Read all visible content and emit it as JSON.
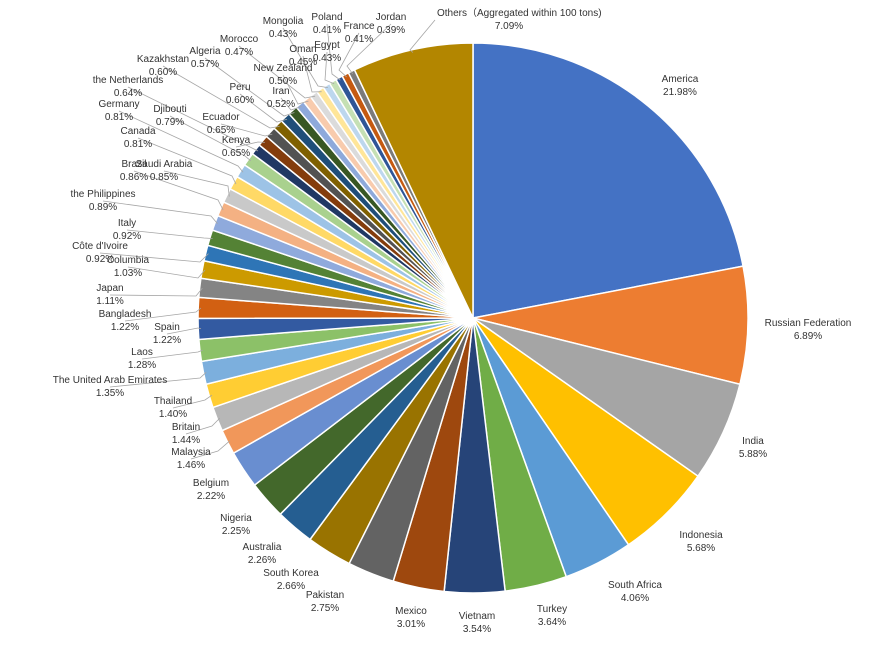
{
  "chart_data": {
    "type": "pie",
    "title": "",
    "start": "top",
    "direction": "clockwise",
    "legend": "none",
    "slices": [
      {
        "label": "America",
        "value": 21.98,
        "display": "21.98%",
        "color": "#4472C4"
      },
      {
        "label": "Russian Federation",
        "value": 6.89,
        "display": "6.89%",
        "color": "#ED7D31"
      },
      {
        "label": "India",
        "value": 5.88,
        "display": "5.88%",
        "color": "#A5A5A5"
      },
      {
        "label": "Indonesia",
        "value": 5.68,
        "display": "5.68%",
        "color": "#FFC000"
      },
      {
        "label": "South Africa",
        "value": 4.06,
        "display": "4.06%",
        "color": "#5B9BD5"
      },
      {
        "label": "Turkey",
        "value": 3.64,
        "display": "3.64%",
        "color": "#70AD47"
      },
      {
        "label": "Vietnam",
        "value": 3.54,
        "display": "3.54%",
        "color": "#264478"
      },
      {
        "label": "Mexico",
        "value": 3.01,
        "display": "3.01%",
        "color": "#9E480E"
      },
      {
        "label": "Pakistan",
        "value": 2.75,
        "display": "2.75%",
        "color": "#636363"
      },
      {
        "label": "South Korea",
        "value": 2.66,
        "display": "2.66%",
        "color": "#997300"
      },
      {
        "label": "Australia",
        "value": 2.26,
        "display": "2.26%",
        "color": "#255E91"
      },
      {
        "label": "Nigeria",
        "value": 2.25,
        "display": "2.25%",
        "color": "#43682B"
      },
      {
        "label": "Belgium",
        "value": 2.22,
        "display": "2.22%",
        "color": "#698ED0"
      },
      {
        "label": "Malaysia",
        "value": 1.46,
        "display": "1.46%",
        "color": "#F1975A"
      },
      {
        "label": "Britain",
        "value": 1.44,
        "display": "1.44%",
        "color": "#B7B7B7"
      },
      {
        "label": "Thailand",
        "value": 1.4,
        "display": "1.40%",
        "color": "#FFCD33"
      },
      {
        "label": "The United Arab Emirates",
        "value": 1.35,
        "display": "1.35%",
        "color": "#7CAFDD"
      },
      {
        "label": "Laos",
        "value": 1.28,
        "display": "1.28%",
        "color": "#8CC168"
      },
      {
        "label": "Spain",
        "value": 1.22,
        "display": "1.22%",
        "color": "#335AA1"
      },
      {
        "label": "Bangladesh",
        "value": 1.22,
        "display": "1.22%",
        "color": "#D26012"
      },
      {
        "label": "Japan",
        "value": 1.11,
        "display": "1.11%",
        "color": "#848484"
      },
      {
        "label": "Columbia",
        "value": 1.03,
        "display": "1.03%",
        "color": "#CC9A00"
      },
      {
        "label": "Côte d'Ivoire",
        "value": 0.92,
        "display": "0.92%",
        "color": "#2E75B6"
      },
      {
        "label": "Italy",
        "value": 0.92,
        "display": "0.92%",
        "color": "#548235"
      },
      {
        "label": "the Philippines",
        "value": 0.89,
        "display": "0.89%",
        "color": "#8FAADC"
      },
      {
        "label": "Brazil",
        "value": 0.86,
        "display": "0.86%",
        "color": "#F4B183"
      },
      {
        "label": "Saudi Arabia",
        "value": 0.85,
        "display": "0.85%",
        "color": "#C9C9C9"
      },
      {
        "label": "Canada",
        "value": 0.81,
        "display": "0.81%",
        "color": "#FFD966"
      },
      {
        "label": "Germany",
        "value": 0.81,
        "display": "0.81%",
        "color": "#9DC3E6"
      },
      {
        "label": "Djibouti",
        "value": 0.79,
        "display": "0.79%",
        "color": "#A9D18E"
      },
      {
        "label": "the Netherlands",
        "value": 0.64,
        "display": "0.64%",
        "color": "#203864"
      },
      {
        "label": "Kenya",
        "value": 0.65,
        "display": "0.65%",
        "color": "#843C0C"
      },
      {
        "label": "Ecuador",
        "value": 0.65,
        "display": "0.65%",
        "color": "#525252"
      },
      {
        "label": "Kazakhstan",
        "value": 0.6,
        "display": "0.60%",
        "color": "#7F6000"
      },
      {
        "label": "Peru",
        "value": 0.6,
        "display": "0.60%",
        "color": "#1F4E79"
      },
      {
        "label": "Algeria",
        "value": 0.57,
        "display": "0.57%",
        "color": "#385723"
      },
      {
        "label": "Iran",
        "value": 0.52,
        "display": "0.52%",
        "color": "#8EA9DB"
      },
      {
        "label": "New Zealand",
        "value": 0.5,
        "display": "0.50%",
        "color": "#F8CBAD"
      },
      {
        "label": "Morocco",
        "value": 0.47,
        "display": "0.47%",
        "color": "#DBDBDB"
      },
      {
        "label": "Oman",
        "value": 0.45,
        "display": "0.45%",
        "color": "#FFE699"
      },
      {
        "label": "Mongolia",
        "value": 0.43,
        "display": "0.43%",
        "color": "#BDD7EE"
      },
      {
        "label": "Egypt",
        "value": 0.43,
        "display": "0.43%",
        "color": "#C5E0B4"
      },
      {
        "label": "Poland",
        "value": 0.41,
        "display": "0.41%",
        "color": "#2F5597"
      },
      {
        "label": "France",
        "value": 0.41,
        "display": "0.41%",
        "color": "#C55A11"
      },
      {
        "label": "Jordan",
        "value": 0.39,
        "display": "0.39%",
        "color": "#7B7B7B"
      },
      {
        "label": "Others（Aggregated within 100 tons)",
        "value": 7.09,
        "display": "7.09%",
        "color": "#B38600"
      }
    ]
  }
}
